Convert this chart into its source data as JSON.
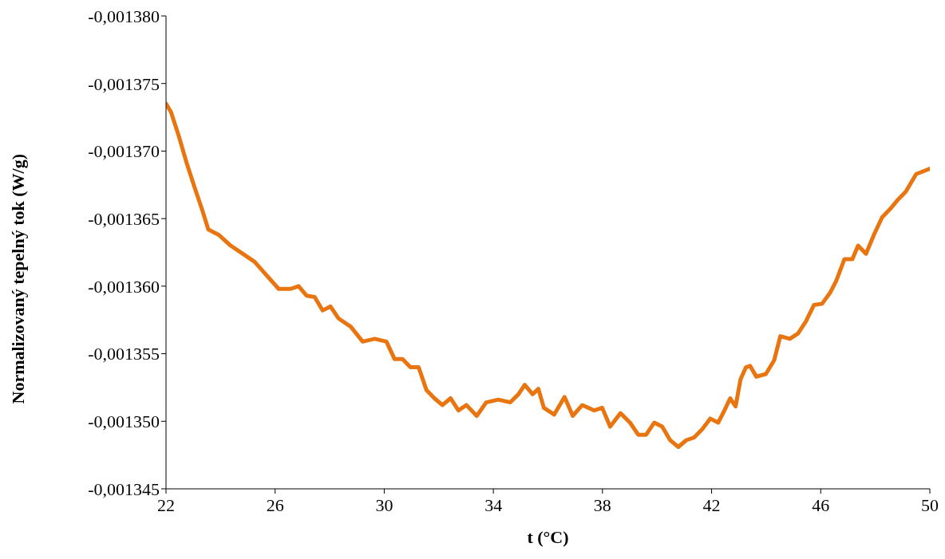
{
  "chart_data": {
    "type": "line",
    "xlabel": "t (°C)",
    "ylabel": "Normalizovaný tepelný tok (W/g)",
    "x": [
      22.0,
      22.18,
      22.47,
      22.76,
      23.05,
      23.35,
      23.55,
      23.93,
      24.37,
      24.81,
      25.25,
      25.69,
      26.13,
      26.57,
      26.86,
      27.15,
      27.45,
      27.74,
      28.03,
      28.33,
      28.77,
      29.21,
      29.65,
      30.08,
      30.38,
      30.67,
      30.96,
      31.26,
      31.55,
      31.84,
      32.13,
      32.43,
      32.72,
      33.01,
      33.39,
      33.74,
      34.18,
      34.62,
      34.92,
      35.15,
      35.44,
      35.65,
      35.85,
      36.23,
      36.61,
      36.91,
      37.26,
      37.7,
      37.99,
      38.28,
      38.66,
      39.01,
      39.31,
      39.6,
      39.9,
      40.19,
      40.48,
      40.78,
      41.07,
      41.36,
      41.65,
      41.95,
      42.24,
      42.47,
      42.68,
      42.88,
      43.06,
      43.26,
      43.41,
      43.64,
      43.99,
      44.29,
      44.52,
      44.87,
      45.17,
      45.46,
      45.75,
      46.05,
      46.34,
      46.57,
      46.87,
      47.16,
      47.37,
      47.66,
      47.95,
      48.25,
      48.54,
      48.83,
      49.12,
      49.5,
      50.0
    ],
    "series": [
      {
        "color": "#e8750f",
        "values": [
          -0.0013735,
          -0.0013729,
          -0.0013711,
          -0.0013691,
          -0.0013673,
          -0.0013655,
          -0.0013642,
          -0.0013638,
          -0.001363,
          -0.0013624,
          -0.0013618,
          -0.0013608,
          -0.0013598,
          -0.0013598,
          -0.00136,
          -0.0013593,
          -0.0013592,
          -0.0013582,
          -0.0013585,
          -0.0013576,
          -0.001357,
          -0.0013559,
          -0.0013561,
          -0.0013559,
          -0.0013546,
          -0.0013546,
          -0.001354,
          -0.001354,
          -0.0013523,
          -0.0013517,
          -0.0013512,
          -0.0013517,
          -0.0013508,
          -0.0013512,
          -0.0013504,
          -0.0013514,
          -0.0013516,
          -0.0013514,
          -0.001352,
          -0.0013527,
          -0.001352,
          -0.0013524,
          -0.001351,
          -0.0013505,
          -0.0013518,
          -0.0013504,
          -0.0013512,
          -0.0013508,
          -0.001351,
          -0.0013496,
          -0.0013506,
          -0.0013499,
          -0.001349,
          -0.001349,
          -0.0013499,
          -0.0013496,
          -0.0013486,
          -0.0013481,
          -0.0013486,
          -0.0013488,
          -0.0013494,
          -0.0013502,
          -0.0013499,
          -0.0013508,
          -0.0013517,
          -0.0013511,
          -0.0013531,
          -0.001354,
          -0.0013541,
          -0.0013533,
          -0.0013535,
          -0.0013545,
          -0.0013563,
          -0.0013561,
          -0.0013565,
          -0.0013574,
          -0.0013586,
          -0.0013587,
          -0.0013595,
          -0.0013604,
          -0.001362,
          -0.001362,
          -0.001363,
          -0.0013624,
          -0.0013638,
          -0.0013651,
          -0.0013657,
          -0.0013664,
          -0.001367,
          -0.0013683,
          -0.0013687
        ]
      }
    ],
    "xlim": [
      22,
      50
    ],
    "xticks": [
      22,
      26,
      30,
      34,
      38,
      42,
      46,
      50
    ],
    "ylim": [
      -0.001345,
      -0.00138
    ],
    "yticks": [
      {
        "value": -0.001345,
        "label": "-0,001345"
      },
      {
        "value": -0.00135,
        "label": "-0,001350"
      },
      {
        "value": -0.001355,
        "label": "-0,001355"
      },
      {
        "value": -0.00136,
        "label": "-0,001360"
      },
      {
        "value": -0.001365,
        "label": "-0,001365"
      },
      {
        "value": -0.00137,
        "label": "-0,001370"
      },
      {
        "value": -0.001375,
        "label": "-0,001375"
      },
      {
        "value": -0.00138,
        "label": "-0,001380"
      }
    ],
    "grid": false,
    "legend": false,
    "marker": "none",
    "line_style": "solid"
  }
}
